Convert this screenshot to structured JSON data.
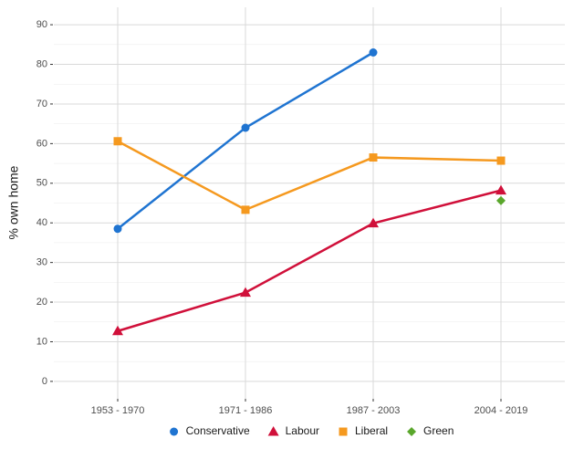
{
  "chart_data": {
    "type": "line",
    "y_label": "% own home",
    "categories": [
      "1953 - 1970",
      "1971 - 1986",
      "1987 - 2003",
      "2004 - 2019"
    ],
    "series": [
      {
        "name": "Conservative",
        "color": "#1f74d1",
        "marker": "circle",
        "values": [
          38.5,
          64,
          83,
          null
        ]
      },
      {
        "name": "Labour",
        "color": "#d0103a",
        "marker": "triangle",
        "values": [
          12.7,
          22.4,
          39.9,
          48.2
        ]
      },
      {
        "name": "Liberal",
        "color": "#f5991f",
        "marker": "square",
        "values": [
          60.6,
          43.3,
          56.5,
          55.7
        ]
      },
      {
        "name": "Green",
        "color": "#5aa72c",
        "marker": "diamond",
        "values": [
          null,
          null,
          null,
          45.6
        ]
      }
    ],
    "ylim": [
      -4.4,
      94.4
    ],
    "yticks": [
      0,
      10,
      20,
      30,
      40,
      50,
      60,
      70,
      80,
      90
    ],
    "grid": true,
    "legend": "bottom"
  }
}
